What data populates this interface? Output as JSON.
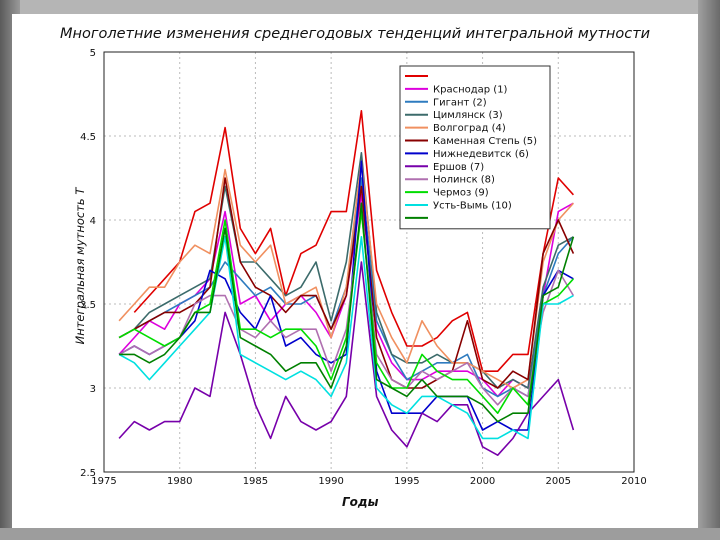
{
  "chart_data": {
    "type": "line",
    "title": "Многолетние изменения среднегодовых тенденций интегральной мутности",
    "xlabel": "Годы",
    "ylabel": "Интегральная мутность T",
    "xlim": [
      1975,
      2010
    ],
    "ylim": [
      2.5,
      5
    ],
    "xticks": [
      1975,
      1980,
      1985,
      1990,
      1995,
      2000,
      2005,
      2010
    ],
    "yticks": [
      2.5,
      3,
      3.5,
      4,
      4.5,
      5
    ],
    "ytick_labels": [
      "2.5",
      "3",
      "3.5",
      "4",
      "4.5",
      "5"
    ],
    "grid": true,
    "legend_position": "top-right",
    "x": [
      1976,
      1977,
      1978,
      1979,
      1980,
      1981,
      1982,
      1983,
      1984,
      1985,
      1986,
      1987,
      1988,
      1989,
      1990,
      1991,
      1992,
      1993,
      1994,
      1995,
      1996,
      1997,
      1998,
      1999,
      2000,
      2001,
      2002,
      2003,
      2004,
      2005,
      2006
    ],
    "series": [
      {
        "name": "",
        "color": "#e00000",
        "values": [
          null,
          3.45,
          3.55,
          3.65,
          3.75,
          4.05,
          4.1,
          4.55,
          3.95,
          3.8,
          3.95,
          3.55,
          3.8,
          3.85,
          4.05,
          4.05,
          4.65,
          3.7,
          3.45,
          3.25,
          3.25,
          3.3,
          3.4,
          3.45,
          3.1,
          3.1,
          3.2,
          3.2,
          3.8,
          4.25,
          4.15
        ]
      },
      {
        "name": "Краснодар (1)",
        "color": "#dd00dd",
        "values": [
          3.2,
          3.3,
          3.4,
          3.35,
          3.5,
          3.55,
          3.65,
          4.05,
          3.5,
          3.55,
          3.4,
          3.5,
          3.55,
          3.45,
          3.3,
          3.55,
          4.15,
          3.35,
          3.15,
          3.05,
          3.05,
          3.1,
          3.1,
          3.1,
          3.05,
          2.95,
          3.05,
          3.0,
          3.55,
          4.05,
          4.1
        ]
      },
      {
        "name": "Гигант (2)",
        "color": "#2e7bbf",
        "values": [
          null,
          3.35,
          3.4,
          3.45,
          3.5,
          3.55,
          3.6,
          3.75,
          3.65,
          3.55,
          3.6,
          3.5,
          3.5,
          3.55,
          3.35,
          3.6,
          4.25,
          3.4,
          3.2,
          3.05,
          3.1,
          3.15,
          3.15,
          3.2,
          3.0,
          2.95,
          3.0,
          2.95,
          3.55,
          3.8,
          3.9
        ]
      },
      {
        "name": "Цимлянск (3)",
        "color": "#3c6b6b",
        "values": [
          3.3,
          3.35,
          3.45,
          3.5,
          3.55,
          3.6,
          3.65,
          4.2,
          3.75,
          3.75,
          3.65,
          3.55,
          3.6,
          3.75,
          3.4,
          3.75,
          4.4,
          3.45,
          3.2,
          3.15,
          3.15,
          3.2,
          3.15,
          3.15,
          3.1,
          3.0,
          3.05,
          3.0,
          3.6,
          3.85,
          3.9
        ]
      },
      {
        "name": "Волгоград (4)",
        "color": "#f09060",
        "values": [
          3.4,
          3.5,
          3.6,
          3.6,
          3.75,
          3.85,
          3.8,
          4.3,
          3.85,
          3.75,
          3.85,
          3.5,
          3.55,
          3.6,
          3.3,
          3.6,
          4.35,
          3.5,
          3.3,
          3.15,
          3.4,
          3.25,
          3.15,
          3.15,
          3.1,
          3.05,
          3.0,
          3.05,
          3.75,
          4.0,
          4.1
        ]
      },
      {
        "name": "Каменная Степь (5)",
        "color": "#880000",
        "values": [
          3.3,
          3.35,
          3.4,
          3.45,
          3.45,
          3.5,
          3.6,
          4.25,
          3.75,
          3.6,
          3.55,
          3.45,
          3.55,
          3.55,
          3.35,
          3.55,
          4.2,
          3.3,
          3.05,
          3.0,
          3.0,
          3.05,
          3.1,
          3.4,
          3.05,
          3.0,
          3.1,
          3.05,
          3.8,
          4.0,
          3.8
        ]
      },
      {
        "name": "Нижнедевитск (6)",
        "color": "#0000cc",
        "values": [
          3.2,
          3.25,
          3.2,
          3.25,
          3.3,
          3.4,
          3.7,
          3.65,
          3.45,
          3.35,
          3.55,
          3.25,
          3.3,
          3.2,
          3.15,
          3.2,
          4.35,
          3.1,
          2.85,
          2.85,
          2.85,
          2.95,
          2.95,
          2.95,
          2.75,
          2.8,
          2.75,
          2.75,
          3.55,
          3.7,
          3.65
        ]
      },
      {
        "name": "Ершов (7)",
        "color": "#7700aa",
        "values": [
          2.7,
          2.8,
          2.75,
          2.8,
          2.8,
          3.0,
          2.95,
          3.45,
          3.2,
          2.9,
          2.7,
          2.95,
          2.8,
          2.75,
          2.8,
          2.95,
          3.75,
          2.95,
          2.75,
          2.65,
          2.85,
          2.8,
          2.9,
          2.9,
          2.65,
          2.6,
          2.7,
          2.85,
          2.95,
          3.05,
          2.75
        ]
      },
      {
        "name": "Нолинск (8)",
        "color": "#b070b0",
        "values": [
          3.2,
          3.25,
          3.2,
          3.25,
          3.3,
          3.5,
          3.55,
          3.55,
          3.35,
          3.3,
          3.4,
          3.3,
          3.35,
          3.35,
          3.1,
          3.35,
          4.05,
          3.2,
          3.05,
          3.0,
          3.1,
          3.05,
          3.1,
          3.15,
          3.0,
          2.9,
          3.0,
          2.95,
          3.45,
          3.7,
          3.55
        ]
      },
      {
        "name": "Чермоз (9)",
        "color": "#00dd00",
        "values": [
          3.3,
          3.35,
          3.3,
          3.25,
          3.3,
          3.45,
          3.5,
          4.0,
          3.35,
          3.35,
          3.3,
          3.35,
          3.35,
          3.25,
          3.05,
          3.3,
          4.05,
          3.15,
          3.0,
          3.0,
          3.2,
          3.1,
          3.05,
          3.05,
          2.95,
          2.85,
          3.0,
          2.9,
          3.5,
          3.55,
          3.65
        ]
      },
      {
        "name": "Усть-Вымь (10)",
        "color": "#00e0e0",
        "values": [
          3.2,
          3.15,
          3.05,
          3.15,
          3.25,
          3.35,
          3.45,
          3.9,
          3.2,
          3.15,
          3.1,
          3.05,
          3.1,
          3.05,
          2.95,
          3.15,
          3.9,
          3.0,
          2.9,
          2.85,
          2.95,
          2.95,
          2.9,
          2.85,
          2.7,
          2.7,
          2.75,
          2.7,
          3.5,
          3.5,
          3.55
        ]
      },
      {
        "name": "",
        "color": "#008000",
        "values": [
          3.2,
          3.2,
          3.15,
          3.2,
          3.3,
          3.45,
          3.45,
          3.95,
          3.3,
          3.25,
          3.2,
          3.1,
          3.15,
          3.15,
          3.0,
          3.25,
          4.1,
          3.05,
          3.0,
          2.95,
          3.05,
          2.95,
          2.95,
          2.95,
          2.9,
          2.8,
          2.85,
          2.85,
          3.55,
          3.6,
          3.9
        ]
      }
    ]
  }
}
